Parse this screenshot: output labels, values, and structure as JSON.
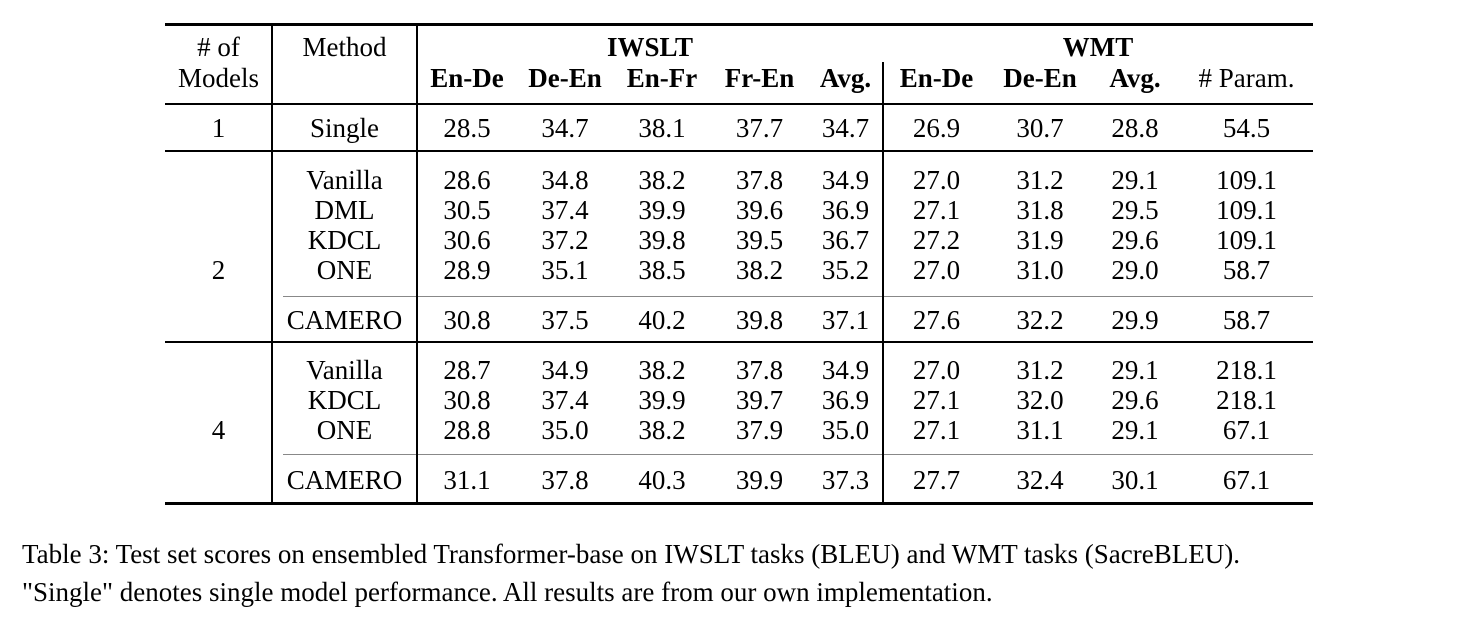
{
  "table": {
    "header": {
      "models_line1": "# of",
      "models_line2": "Models",
      "method": "Method",
      "group_iwslt": "IWSLT",
      "group_wmt": "WMT",
      "iwslt_cols": [
        "En-De",
        "De-En",
        "En-Fr",
        "Fr-En",
        "Avg."
      ],
      "wmt_cols": [
        "En-De",
        "De-En",
        "Avg."
      ],
      "params": "# Param."
    },
    "sections": [
      {
        "models_label": "1",
        "main_rows": [
          {
            "method": "Single",
            "iwslt": [
              "28.5",
              "34.7",
              "38.1",
              "37.7",
              "34.7"
            ],
            "wmt": [
              "26.9",
              "30.7",
              "28.8"
            ],
            "params": "54.5"
          }
        ],
        "camero_row": null
      },
      {
        "models_label": "2",
        "main_rows": [
          {
            "method": "Vanilla",
            "iwslt": [
              "28.6",
              "34.8",
              "38.2",
              "37.8",
              "34.9"
            ],
            "wmt": [
              "27.0",
              "31.2",
              "29.1"
            ],
            "params": "109.1"
          },
          {
            "method": "DML",
            "iwslt": [
              "30.5",
              "37.4",
              "39.9",
              "39.6",
              "36.9"
            ],
            "wmt": [
              "27.1",
              "31.8",
              "29.5"
            ],
            "params": "109.1"
          },
          {
            "method": "KDCL",
            "iwslt": [
              "30.6",
              "37.2",
              "39.8",
              "39.5",
              "36.7"
            ],
            "wmt": [
              "27.2",
              "31.9",
              "29.6"
            ],
            "params": "109.1"
          },
          {
            "method": "ONE",
            "iwslt": [
              "28.9",
              "35.1",
              "38.5",
              "38.2",
              "35.2"
            ],
            "wmt": [
              "27.0",
              "31.0",
              "29.0"
            ],
            "params": "58.7"
          }
        ],
        "camero_row": {
          "method": "CAMERO",
          "iwslt": [
            "30.8",
            "37.5",
            "40.2",
            "39.8",
            "37.1"
          ],
          "wmt": [
            "27.6",
            "32.2",
            "29.9"
          ],
          "params": "58.7"
        }
      },
      {
        "models_label": "4",
        "main_rows": [
          {
            "method": "Vanilla",
            "iwslt": [
              "28.7",
              "34.9",
              "38.2",
              "37.8",
              "34.9"
            ],
            "wmt": [
              "27.0",
              "31.2",
              "29.1"
            ],
            "params": "218.1"
          },
          {
            "method": "KDCL",
            "iwslt": [
              "30.8",
              "37.4",
              "39.9",
              "39.7",
              "36.9"
            ],
            "wmt": [
              "27.1",
              "32.0",
              "29.6"
            ],
            "params": "218.1"
          },
          {
            "method": "ONE",
            "iwslt": [
              "28.8",
              "35.0",
              "38.2",
              "37.9",
              "35.0"
            ],
            "wmt": [
              "27.1",
              "31.1",
              "29.1"
            ],
            "params": "67.1"
          }
        ],
        "camero_row": {
          "method": "CAMERO",
          "iwslt": [
            "31.1",
            "37.8",
            "40.3",
            "39.9",
            "37.3"
          ],
          "wmt": [
            "27.7",
            "32.4",
            "30.1"
          ],
          "params": "67.1"
        }
      }
    ]
  },
  "caption": {
    "line1": "Table 3: Test set scores on ensembled Transformer-base on IWSLT tasks (BLEU) and WMT tasks (SacreBLEU).",
    "line2": "\"Single\" denotes single model performance. All results are from our own implementation."
  },
  "colors": {
    "text": "#000000",
    "rule": "#000000",
    "light_rule": "#888888",
    "background": "#ffffff"
  }
}
